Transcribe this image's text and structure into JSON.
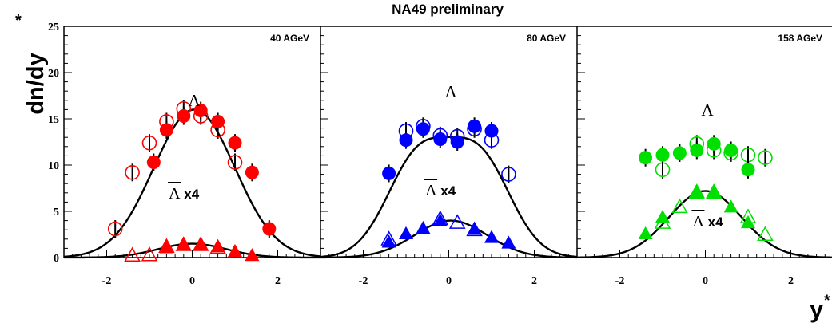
{
  "chart_data": {
    "type": "scatter",
    "title": "NA49 preliminary",
    "ylabel": "dn/dy",
    "ylabel_superscript": "*",
    "xlabel": "y",
    "xlabel_superscript": "*",
    "ylim": [
      0,
      25
    ],
    "xlim": [
      -3,
      3
    ],
    "yticks": [
      0,
      5,
      10,
      15,
      20,
      25
    ],
    "xticks": [
      -2,
      0,
      2
    ],
    "panels": [
      {
        "energy": "40 AGeV",
        "color": "#ff0000",
        "lambda_label": "Λ",
        "antilambda_label": "Λ",
        "antilambda_suffix": " x4",
        "lambda_filled": [
          {
            "x": -0.9,
            "y": 10.3
          },
          {
            "x": -0.6,
            "y": 13.8
          },
          {
            "x": -0.2,
            "y": 15.3
          },
          {
            "x": 0.2,
            "y": 15.9
          },
          {
            "x": 0.6,
            "y": 14.7
          },
          {
            "x": 1.0,
            "y": 12.4
          },
          {
            "x": 1.4,
            "y": 9.2
          },
          {
            "x": 1.8,
            "y": 3.1
          }
        ],
        "lambda_open": [
          {
            "x": -1.8,
            "y": 3.1
          },
          {
            "x": -1.4,
            "y": 9.2
          },
          {
            "x": -1.0,
            "y": 12.4
          },
          {
            "x": -0.6,
            "y": 14.7
          },
          {
            "x": -0.2,
            "y": 16.1
          },
          {
            "x": 0.2,
            "y": 15.3
          },
          {
            "x": 0.6,
            "y": 13.8
          },
          {
            "x": 1.0,
            "y": 10.3
          }
        ],
        "lambda_fit": {
          "model": "gaussian",
          "amplitude": 16.0,
          "mean": 0.05,
          "sigma": 0.95
        },
        "antilambda_filled": [
          {
            "x": -0.6,
            "y": 1.1
          },
          {
            "x": -0.2,
            "y": 1.4
          },
          {
            "x": 0.2,
            "y": 1.4
          },
          {
            "x": 0.6,
            "y": 1.2
          },
          {
            "x": 1.0,
            "y": 0.7
          },
          {
            "x": 1.4,
            "y": 0.25
          }
        ],
        "antilambda_open": [
          {
            "x": -1.4,
            "y": 0.25
          },
          {
            "x": -1.0,
            "y": 0.3
          },
          {
            "x": -0.6,
            "y": 1.2
          },
          {
            "x": -0.2,
            "y": 1.4
          },
          {
            "x": 0.2,
            "y": 1.4
          },
          {
            "x": 0.6,
            "y": 1.1
          }
        ],
        "antilambda_fit": {
          "model": "gaussian",
          "amplitude": 1.5,
          "mean": 0.0,
          "sigma": 0.8
        }
      },
      {
        "energy": "80 AGeV",
        "color": "#0000ff",
        "lambda_label": "Λ",
        "antilambda_label": "Λ",
        "antilambda_suffix": " x4",
        "lambda_filled": [
          {
            "x": -1.4,
            "y": 9.1
          },
          {
            "x": -1.0,
            "y": 12.7
          },
          {
            "x": -0.6,
            "y": 13.9
          },
          {
            "x": -0.2,
            "y": 12.8
          },
          {
            "x": 0.2,
            "y": 12.5
          },
          {
            "x": 0.6,
            "y": 14.2
          },
          {
            "x": 1.0,
            "y": 13.7
          }
        ],
        "lambda_open": [
          {
            "x": -1.0,
            "y": 13.7
          },
          {
            "x": -0.6,
            "y": 14.2
          },
          {
            "x": -0.2,
            "y": 13.2
          },
          {
            "x": 0.2,
            "y": 13.1
          },
          {
            "x": 0.6,
            "y": 13.9
          },
          {
            "x": 1.0,
            "y": 12.7
          },
          {
            "x": 1.4,
            "y": 9.0
          }
        ],
        "lambda_fit": {
          "model": "double-gaussian",
          "amplitude": 10.6,
          "mean": 0.72,
          "sigma": 0.73
        },
        "antilambda_filled": [
          {
            "x": -1.4,
            "y": 1.7
          },
          {
            "x": -1.0,
            "y": 2.6
          },
          {
            "x": -0.6,
            "y": 3.2
          },
          {
            "x": -0.2,
            "y": 4.0
          },
          {
            "x": 0.6,
            "y": 3.1
          },
          {
            "x": 1.0,
            "y": 2.2
          },
          {
            "x": 1.4,
            "y": 1.6
          }
        ],
        "antilambda_open": [
          {
            "x": -1.4,
            "y": 2.0
          },
          {
            "x": -0.2,
            "y": 4.2
          },
          {
            "x": 0.2,
            "y": 3.8
          },
          {
            "x": 0.6,
            "y": 3.0
          }
        ],
        "antilambda_fit": {
          "model": "gaussian",
          "amplitude": 4.0,
          "mean": 0.05,
          "sigma": 0.85
        }
      },
      {
        "energy": "158 AGeV",
        "color": "#00e000",
        "lambda_label": "Λ",
        "antilambda_label": "Λ",
        "antilambda_suffix": " x4",
        "lambda_filled": [
          {
            "x": -1.4,
            "y": 10.8
          },
          {
            "x": -1.0,
            "y": 11.1
          },
          {
            "x": -0.6,
            "y": 11.3
          },
          {
            "x": -0.2,
            "y": 11.6
          },
          {
            "x": 0.2,
            "y": 12.3
          },
          {
            "x": 0.6,
            "y": 11.6
          },
          {
            "x": 1.0,
            "y": 9.5
          }
        ],
        "lambda_open": [
          {
            "x": -1.0,
            "y": 9.5
          },
          {
            "x": -0.2,
            "y": 12.3
          },
          {
            "x": 0.2,
            "y": 11.6
          },
          {
            "x": 0.6,
            "y": 11.3
          },
          {
            "x": 1.0,
            "y": 11.1
          },
          {
            "x": 1.4,
            "y": 10.8
          }
        ],
        "antilambda_filled": [
          {
            "x": -1.4,
            "y": 2.6
          },
          {
            "x": -1.0,
            "y": 4.4
          },
          {
            "x": -0.2,
            "y": 7.0
          },
          {
            "x": 0.2,
            "y": 7.0
          },
          {
            "x": 0.6,
            "y": 5.5
          },
          {
            "x": 1.0,
            "y": 3.8
          }
        ],
        "antilambda_open": [
          {
            "x": -1.0,
            "y": 3.8
          },
          {
            "x": -0.6,
            "y": 5.5
          },
          {
            "x": -0.2,
            "y": 7.1
          },
          {
            "x": 0.2,
            "y": 7.1
          },
          {
            "x": 1.0,
            "y": 4.4
          },
          {
            "x": 1.4,
            "y": 2.5
          }
        ],
        "antilambda_fit": {
          "model": "gaussian",
          "amplitude": 7.2,
          "mean": 0.0,
          "sigma": 0.85
        }
      }
    ]
  }
}
